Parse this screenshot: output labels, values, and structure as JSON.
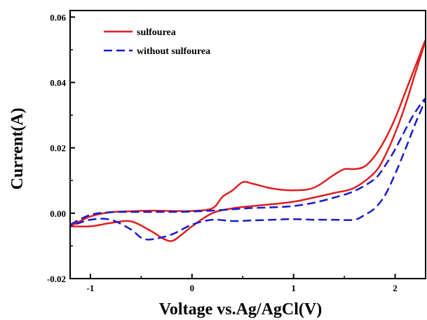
{
  "chart_data": {
    "type": "line",
    "xlabel": "Voltage vs.Ag/AgCl(V)",
    "ylabel": "Current(A)",
    "xlim": [
      -1.2,
      2.3
    ],
    "ylim": [
      -0.02,
      0.062
    ],
    "xticks": [
      -1,
      0,
      1,
      2
    ],
    "xtick_labels": [
      "-1",
      "0",
      "1",
      "2"
    ],
    "yticks": [
      -0.02,
      0.0,
      0.02,
      0.04,
      0.06
    ],
    "ytick_labels": [
      "-0.02",
      "0.00",
      "0.02",
      "0.04",
      "0.06"
    ],
    "legend_position": "top-left",
    "grid": false,
    "series": [
      {
        "name": "sulfourea",
        "color": "#e02020",
        "dash": "solid",
        "x": [
          -1.2,
          -1.0,
          -0.8,
          -0.6,
          -0.4,
          -0.2,
          0.0,
          0.2,
          0.3,
          0.4,
          0.5,
          0.6,
          0.8,
          1.0,
          1.2,
          1.4,
          1.5,
          1.6,
          1.7,
          1.8,
          1.9,
          2.0,
          2.1,
          2.2,
          2.3,
          2.2,
          2.1,
          2.0,
          1.9,
          1.8,
          1.6,
          1.4,
          1.2,
          1.0,
          0.8,
          0.6,
          0.4,
          0.2,
          0.0,
          -0.1,
          -0.2,
          -0.3,
          -0.4,
          -0.6,
          -0.8,
          -1.0,
          -1.2
        ],
        "y": [
          -0.004,
          -0.001,
          0.0003,
          0.0006,
          0.0008,
          0.0007,
          0.0007,
          0.0015,
          0.005,
          0.007,
          0.0095,
          0.009,
          0.0075,
          0.007,
          0.0078,
          0.0118,
          0.0135,
          0.0135,
          0.0143,
          0.0175,
          0.0225,
          0.029,
          0.037,
          0.045,
          0.053,
          0.043,
          0.033,
          0.0245,
          0.0175,
          0.0125,
          0.0078,
          0.0062,
          0.0048,
          0.0035,
          0.0028,
          0.0022,
          0.0015,
          0.0,
          -0.004,
          -0.0065,
          -0.0085,
          -0.0075,
          -0.0055,
          -0.0025,
          -0.003,
          -0.004,
          -0.004
        ]
      },
      {
        "name": "without sulfourea",
        "color": "#1a1acc",
        "dash": "dashed",
        "x": [
          -1.2,
          -1.0,
          -0.8,
          -0.6,
          -0.4,
          -0.2,
          0.0,
          0.2,
          0.4,
          0.6,
          0.8,
          1.0,
          1.2,
          1.4,
          1.6,
          1.8,
          1.9,
          2.0,
          2.1,
          2.2,
          2.3,
          2.2,
          2.1,
          2.0,
          1.9,
          1.8,
          1.7,
          1.6,
          1.4,
          1.2,
          1.0,
          0.8,
          0.6,
          0.4,
          0.2,
          0.0,
          -0.2,
          -0.4,
          -0.5,
          -0.6,
          -0.8,
          -1.0,
          -1.2
        ],
        "y": [
          -0.0035,
          -0.0005,
          0.0003,
          0.0004,
          0.0004,
          0.0004,
          0.0005,
          0.0008,
          0.0012,
          0.0016,
          0.0018,
          0.0022,
          0.0032,
          0.0048,
          0.0068,
          0.0105,
          0.0145,
          0.0195,
          0.0255,
          0.031,
          0.035,
          0.0275,
          0.0195,
          0.012,
          0.0055,
          0.0015,
          -0.0005,
          -0.002,
          -0.002,
          -0.002,
          -0.0018,
          -0.002,
          -0.0022,
          -0.0024,
          -0.002,
          -0.0035,
          -0.0065,
          -0.008,
          -0.0075,
          -0.005,
          -0.002,
          -0.002,
          -0.004
        ]
      }
    ]
  }
}
